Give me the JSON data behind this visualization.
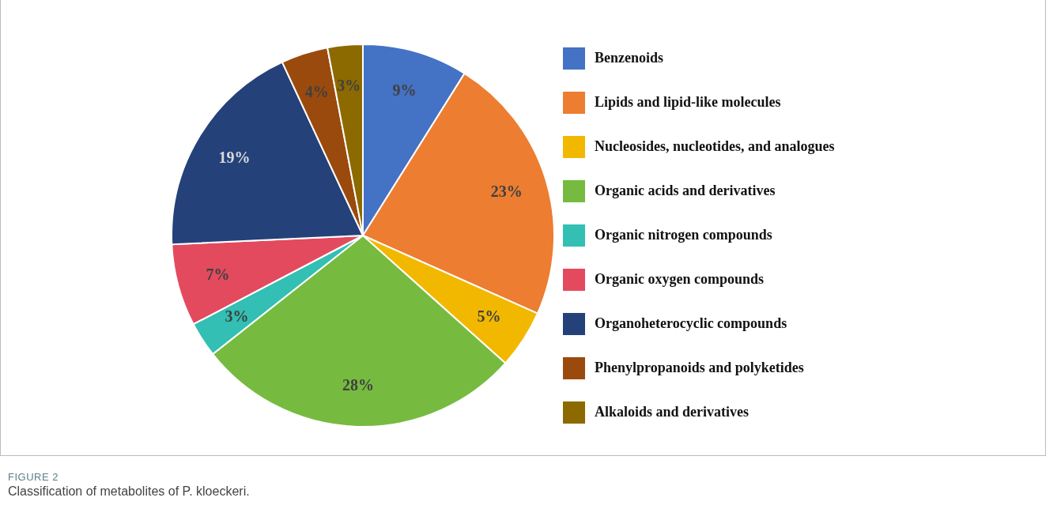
{
  "chart_data": {
    "type": "pie",
    "categories": [
      "Benzenoids",
      "Lipids and lipid-like molecules",
      "Nucleosides, nucleotides, and analogues",
      "Organic acids and derivatives",
      "Organic nitrogen compounds",
      "Organic oxygen compounds",
      "Organoheterocyclic compounds",
      "Phenylpropanoids and polyketides",
      "Alkaloids and derivatives"
    ],
    "values": [
      9,
      23,
      5,
      28,
      3,
      7,
      19,
      4,
      3
    ],
    "colors": [
      "#4472c4",
      "#ed7d31",
      "#f2b800",
      "#76bb40",
      "#33bfb3",
      "#e34a5e",
      "#24417a",
      "#9b4a0d",
      "#8c6a00"
    ],
    "value_labels": [
      "9%",
      "23%",
      "5%",
      "28%",
      "3%",
      "7%",
      "19%",
      "4%",
      "3%"
    ],
    "legend": "right",
    "annotations": [
      "FIGURE 2",
      "Classification of metabolites of P. kloeckeri."
    ]
  }
}
